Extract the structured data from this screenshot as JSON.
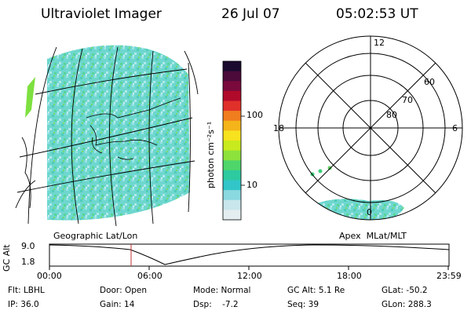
{
  "header": {
    "instrument": "Ultraviolet Imager",
    "date": "26 Jul 07",
    "time": "05:02:53 UT"
  },
  "colorbar": {
    "unit_label": "photon cm⁻²s⁻¹",
    "ticks": [
      "100",
      "10"
    ],
    "colors": [
      "#1a0a2e",
      "#4b0a3a",
      "#7a0a3c",
      "#b00a2a",
      "#e0302a",
      "#f07d1e",
      "#f4b41a",
      "#f6e21e",
      "#c8ea1e",
      "#8ee23c",
      "#4ed66a",
      "#2ecaa0",
      "#32c6c8",
      "#8ad8e0",
      "#c8e6ec",
      "#e4eef0"
    ]
  },
  "left_map": {
    "caption": "Geographic Lat/Lon"
  },
  "polar_plot": {
    "caption": "Apex  MLat/MLT",
    "mlt_labels": {
      "top": "12",
      "left": "18",
      "right": "6",
      "bottom": "0"
    },
    "lat_labels": [
      "60",
      "70",
      "80"
    ]
  },
  "altitude_plot": {
    "ylabel": "GC Alt",
    "yticks": [
      "9.0",
      "1.8"
    ],
    "xticks": [
      "00:00",
      "06:00",
      "12:00",
      "18:00",
      "23:59"
    ],
    "marker_time": "05:02:53",
    "marker_color": "#c03030"
  },
  "status": {
    "row1": {
      "flt": "Flt: LBHL",
      "door": "Door: Open",
      "mode": "Mode: Normal",
      "gcalt": "GC Alt: 5.1 Re",
      "glat": "GLat: -50.2"
    },
    "row2": {
      "ip": "IP: 36.0",
      "gain": "Gain: 14",
      "dsp": "Dsp:    -7.2",
      "seq": "Seq: 39",
      "glon": "GLon: 288.3"
    }
  }
}
